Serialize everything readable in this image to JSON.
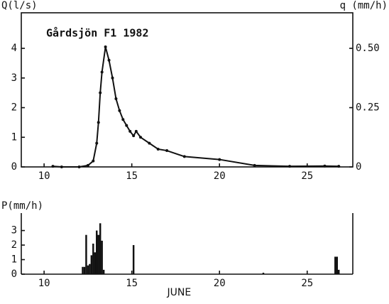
{
  "chart_data": [
    {
      "type": "line",
      "annotation": "Gårdsjön F1 1982",
      "ylabel": "Q(l/s)",
      "y2label": "q (mm/h)",
      "xlim": [
        8.7,
        27.6
      ],
      "xticks": [
        10,
        15,
        20,
        25
      ],
      "ylim": [
        0,
        5.2
      ],
      "yticks": [
        0,
        1,
        2,
        3,
        4
      ],
      "y2lim": [
        0,
        0.65
      ],
      "y2ticks": [
        0,
        0.25,
        {
          "value": 0.5,
          "label": "0.50"
        }
      ],
      "series": [
        {
          "name": "Q",
          "color": "#111111",
          "x": [
            10.5,
            11,
            12,
            12.5,
            12.8,
            13,
            13.1,
            13.2,
            13.3,
            13.5,
            13.7,
            13.9,
            14.1,
            14.3,
            14.5,
            14.7,
            14.9,
            15.1,
            15.25,
            15.5,
            16,
            16.5,
            17,
            18,
            20,
            22,
            24,
            26,
            26.8
          ],
          "values": [
            0.02,
            0,
            0,
            0.05,
            0.2,
            0.8,
            1.5,
            2.5,
            3.2,
            4.05,
            3.6,
            3.0,
            2.3,
            1.9,
            1.6,
            1.4,
            1.2,
            1.05,
            1.2,
            1.0,
            0.8,
            0.6,
            0.55,
            0.35,
            0.25,
            0.05,
            0.02,
            0.03,
            0.02
          ]
        }
      ]
    },
    {
      "type": "bar",
      "ylabel": "P(mm/h)",
      "xlabel": "JUNE",
      "xlim": [
        8.7,
        27.6
      ],
      "xticks": [
        10,
        15,
        20,
        25
      ],
      "ylim": [
        0,
        4.2
      ],
      "yticks": [
        0,
        1,
        2,
        3
      ],
      "series": [
        {
          "name": "P",
          "color": "#111111",
          "x": [
            12.2,
            12.3,
            12.4,
            12.5,
            12.6,
            12.7,
            12.8,
            12.9,
            13.0,
            13.1,
            13.2,
            13.3,
            13.4,
            15.1,
            22.5,
            26.6,
            26.7,
            26.8
          ],
          "values": [
            0.5,
            0.5,
            2.7,
            0.6,
            0.7,
            1.3,
            2.1,
            1.5,
            3.0,
            2.7,
            3.5,
            2.3,
            0.3,
            2.0,
            0.1,
            1.2,
            1.2,
            0.3
          ]
        }
      ]
    }
  ]
}
